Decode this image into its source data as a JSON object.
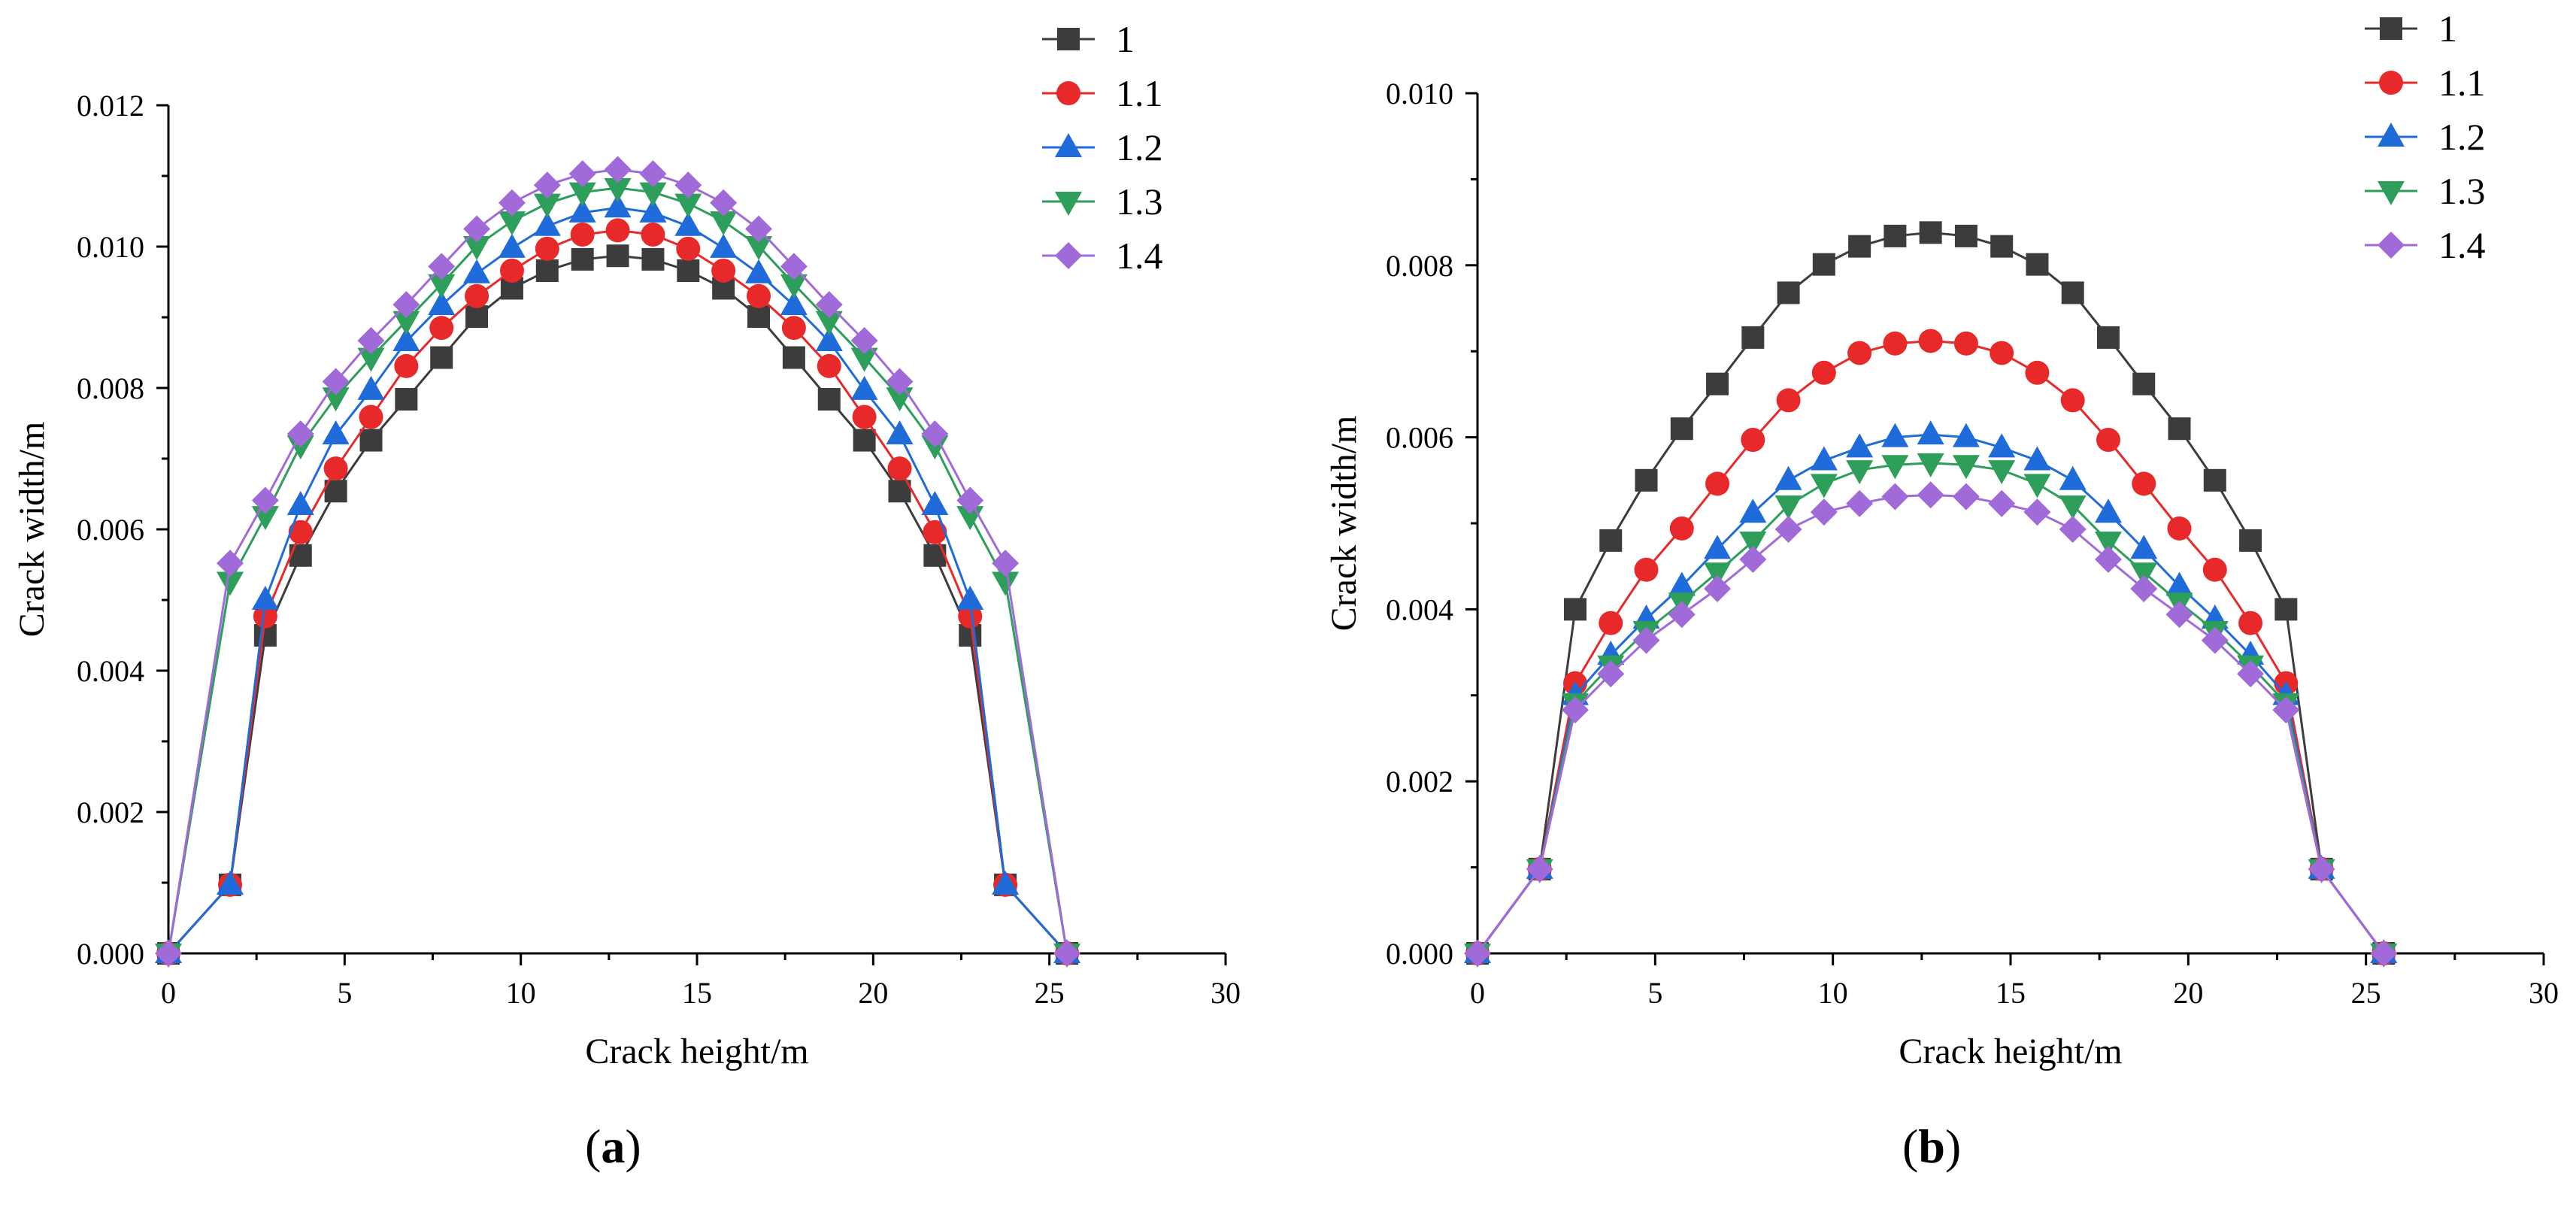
{
  "chart_data": [
    {
      "type": "line",
      "panel_label": {
        "prefix": "(",
        "letter": "a",
        "suffix": ")"
      },
      "xlabel": "Crack height/m",
      "ylabel": "Crack width/m",
      "xlim": [
        0,
        30
      ],
      "ylim": [
        0,
        0.012
      ],
      "xticks": [
        0,
        5,
        10,
        15,
        20,
        25,
        30
      ],
      "xtick_labels": [
        "0",
        "5",
        "10",
        "15",
        "20",
        "25",
        "30"
      ],
      "yticks": [
        0,
        0.002,
        0.004,
        0.006,
        0.008,
        0.01,
        0.012
      ],
      "ytick_labels": [
        "0.000",
        "0.002",
        "0.004",
        "0.006",
        "0.008",
        "0.010",
        "0.012"
      ],
      "grid": false,
      "legend_position": "top-right",
      "x": [
        0,
        1.75,
        2.75,
        3.75,
        4.75,
        5.75,
        6.75,
        7.75,
        8.75,
        9.75,
        10.75,
        11.75,
        12.75,
        13.75,
        14.75,
        15.75,
        16.75,
        17.75,
        18.75,
        19.75,
        20.75,
        21.75,
        22.75,
        23.75,
        25.5
      ],
      "series": [
        {
          "name": "1",
          "color": "#3c3c3c",
          "marker": "square",
          "values": [
            0,
            0.00097,
            0.0045,
            0.00563,
            0.00654,
            0.00726,
            0.00784,
            0.00843,
            0.00901,
            0.00941,
            0.00966,
            0.00982,
            0.00987,
            0.00982,
            0.00966,
            0.00941,
            0.00901,
            0.00843,
            0.00784,
            0.00726,
            0.00654,
            0.00563,
            0.0045,
            0.00097,
            0
          ]
        },
        {
          "name": "1.1",
          "color": "#e8292a",
          "marker": "circle",
          "values": [
            0,
            0.00097,
            0.00477,
            0.00596,
            0.00686,
            0.00759,
            0.00831,
            0.00885,
            0.0093,
            0.00966,
            0.00997,
            0.01017,
            0.01023,
            0.01017,
            0.00997,
            0.00966,
            0.0093,
            0.00885,
            0.00831,
            0.00759,
            0.00686,
            0.00596,
            0.00477,
            0.00097,
            0
          ]
        },
        {
          "name": "1.2",
          "color": "#1f6bd9",
          "marker": "triangle-up",
          "values": [
            0,
            0.00097,
            0.005,
            0.00634,
            0.00734,
            0.00797,
            0.00866,
            0.00917,
            0.00962,
            0.00998,
            0.01029,
            0.01048,
            0.01055,
            0.01048,
            0.01029,
            0.00998,
            0.00962,
            0.00917,
            0.00866,
            0.00797,
            0.00734,
            0.00634,
            0.005,
            0.00097,
            0
          ]
        },
        {
          "name": "1.3",
          "color": "#2e9e5b",
          "marker": "triangle-down",
          "values": [
            0,
            0.00526,
            0.00619,
            0.00719,
            0.00787,
            0.00843,
            0.00895,
            0.00947,
            0.01001,
            0.01036,
            0.01061,
            0.01077,
            0.01083,
            0.01077,
            0.01061,
            0.01036,
            0.01001,
            0.00947,
            0.00895,
            0.00843,
            0.00787,
            0.00719,
            0.00619,
            0.00526,
            0
          ]
        },
        {
          "name": "1.4",
          "color": "#a06ad9",
          "marker": "diamond",
          "values": [
            0,
            0.00552,
            0.00641,
            0.00735,
            0.00809,
            0.00867,
            0.00918,
            0.00972,
            0.01025,
            0.01062,
            0.01087,
            0.01103,
            0.01109,
            0.01103,
            0.01087,
            0.01062,
            0.01025,
            0.00972,
            0.00918,
            0.00867,
            0.00809,
            0.00735,
            0.00641,
            0.00552,
            0
          ]
        }
      ]
    },
    {
      "type": "line",
      "panel_label": {
        "prefix": "(",
        "letter": "b",
        "suffix": ")"
      },
      "xlabel": "Crack height/m",
      "ylabel": "Crack width/m",
      "xlim": [
        0,
        30
      ],
      "ylim": [
        0,
        0.01
      ],
      "xticks": [
        0,
        5,
        10,
        15,
        20,
        25,
        30
      ],
      "xtick_labels": [
        "0",
        "5",
        "10",
        "15",
        "20",
        "25",
        "30"
      ],
      "yticks": [
        0,
        0.002,
        0.004,
        0.006,
        0.008,
        0.01
      ],
      "ytick_labels": [
        "0.000",
        "0.002",
        "0.004",
        "0.006",
        "0.008",
        "0.010"
      ],
      "grid": false,
      "legend_position": "top-right",
      "x": [
        0,
        1.75,
        2.75,
        3.75,
        4.75,
        5.75,
        6.75,
        7.75,
        8.75,
        9.75,
        10.75,
        11.75,
        12.75,
        13.75,
        14.75,
        15.75,
        16.75,
        17.75,
        18.75,
        19.75,
        20.75,
        21.75,
        22.75,
        23.75,
        25.5
      ],
      "series": [
        {
          "name": "1",
          "color": "#3c3c3c",
          "marker": "square",
          "values": [
            0,
            0.00098,
            0.004,
            0.0048,
            0.0055,
            0.0061,
            0.00662,
            0.00716,
            0.00768,
            0.00801,
            0.00822,
            0.00834,
            0.00838,
            0.00834,
            0.00822,
            0.00801,
            0.00768,
            0.00716,
            0.00662,
            0.0061,
            0.0055,
            0.0048,
            0.004,
            0.00098,
            0
          ]
        },
        {
          "name": "1.1",
          "color": "#e8292a",
          "marker": "circle",
          "values": [
            0,
            0.00098,
            0.00314,
            0.00384,
            0.00446,
            0.00494,
            0.00546,
            0.00597,
            0.00643,
            0.00675,
            0.00698,
            0.00709,
            0.00712,
            0.00709,
            0.00698,
            0.00675,
            0.00643,
            0.00597,
            0.00546,
            0.00494,
            0.00446,
            0.00384,
            0.00314,
            0.00098,
            0
          ]
        },
        {
          "name": "1.2",
          "color": "#1f6bd9",
          "marker": "triangle-up",
          "values": [
            0,
            0.00098,
            0.003,
            0.00347,
            0.00389,
            0.00427,
            0.0047,
            0.00512,
            0.0055,
            0.00573,
            0.00588,
            0.006,
            0.00603,
            0.006,
            0.00588,
            0.00573,
            0.0055,
            0.00512,
            0.0047,
            0.00427,
            0.00389,
            0.00347,
            0.003,
            0.00098,
            0
          ]
        },
        {
          "name": "1.3",
          "color": "#2e9e5b",
          "marker": "triangle-down",
          "values": [
            0,
            0.00098,
            0.00291,
            0.00335,
            0.00375,
            0.00408,
            0.00443,
            0.00479,
            0.00521,
            0.00546,
            0.00562,
            0.00568,
            0.0057,
            0.00568,
            0.00562,
            0.00546,
            0.00521,
            0.00479,
            0.00443,
            0.00408,
            0.00375,
            0.00335,
            0.00291,
            0.00098,
            0
          ]
        },
        {
          "name": "1.4",
          "color": "#a06ad9",
          "marker": "diamond",
          "values": [
            0,
            0.00098,
            0.00283,
            0.00325,
            0.00364,
            0.00394,
            0.00424,
            0.00458,
            0.00493,
            0.00513,
            0.00523,
            0.00531,
            0.00533,
            0.00531,
            0.00523,
            0.00513,
            0.00493,
            0.00458,
            0.00424,
            0.00394,
            0.00364,
            0.00325,
            0.00283,
            0.00098,
            0
          ]
        }
      ]
    }
  ]
}
